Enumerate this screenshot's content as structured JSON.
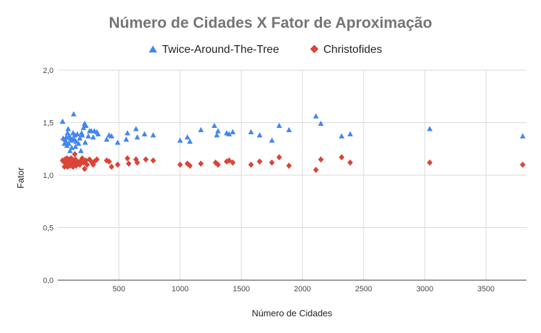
{
  "chart_data": {
    "type": "scatter",
    "title": "Número de Cidades X Fator de Aproximação",
    "xlabel": "Número de Cidades",
    "ylabel": "Fator",
    "xlim": [
      0,
      3830
    ],
    "ylim": [
      0,
      2.0
    ],
    "xticks": [
      500,
      1000,
      1500,
      2000,
      2500,
      3000,
      3500
    ],
    "xtick_labels": [
      "500",
      "1000",
      "1500",
      "2000",
      "2500",
      "3000",
      "3500"
    ],
    "yticks": [
      0,
      0.5,
      1.0,
      1.5,
      2.0
    ],
    "ytick_labels": [
      "0,0",
      "0,5",
      "1,0",
      "1,5",
      "2,0"
    ],
    "grid": true,
    "legend_position": "top-center",
    "series": [
      {
        "name": "Twice-Around-The-Tree",
        "marker": "triangle",
        "color": "#4285f4",
        "points": [
          [
            40,
            1.51
          ],
          [
            45,
            1.35
          ],
          [
            55,
            1.3
          ],
          [
            60,
            1.34
          ],
          [
            65,
            1.32
          ],
          [
            70,
            1.36
          ],
          [
            75,
            1.28
          ],
          [
            80,
            1.4
          ],
          [
            85,
            1.44
          ],
          [
            90,
            1.3
          ],
          [
            95,
            1.37
          ],
          [
            100,
            1.23
          ],
          [
            105,
            1.35
          ],
          [
            110,
            1.33
          ],
          [
            115,
            1.26
          ],
          [
            120,
            1.34
          ],
          [
            125,
            1.4
          ],
          [
            130,
            1.58
          ],
          [
            135,
            1.34
          ],
          [
            140,
            1.38
          ],
          [
            145,
            1.27
          ],
          [
            150,
            1.32
          ],
          [
            160,
            1.39
          ],
          [
            170,
            1.3
          ],
          [
            180,
            1.35
          ],
          [
            190,
            1.23
          ],
          [
            195,
            1.4
          ],
          [
            200,
            1.38
          ],
          [
            210,
            1.45
          ],
          [
            220,
            1.49
          ],
          [
            225,
            1.31
          ],
          [
            230,
            1.47
          ],
          [
            250,
            1.37
          ],
          [
            260,
            1.42
          ],
          [
            275,
            1.42
          ],
          [
            290,
            1.36
          ],
          [
            300,
            1.42
          ],
          [
            320,
            1.41
          ],
          [
            330,
            1.39
          ],
          [
            400,
            1.34
          ],
          [
            420,
            1.38
          ],
          [
            440,
            1.37
          ],
          [
            490,
            1.31
          ],
          [
            560,
            1.34
          ],
          [
            570,
            1.4
          ],
          [
            640,
            1.44
          ],
          [
            650,
            1.36
          ],
          [
            710,
            1.39
          ],
          [
            780,
            1.38
          ],
          [
            1000,
            1.33
          ],
          [
            1060,
            1.36
          ],
          [
            1080,
            1.32
          ],
          [
            1170,
            1.43
          ],
          [
            1280,
            1.47
          ],
          [
            1300,
            1.38
          ],
          [
            1310,
            1.42
          ],
          [
            1380,
            1.4
          ],
          [
            1400,
            1.39
          ],
          [
            1430,
            1.41
          ],
          [
            1580,
            1.41
          ],
          [
            1650,
            1.38
          ],
          [
            1750,
            1.33
          ],
          [
            1810,
            1.47
          ],
          [
            1890,
            1.43
          ],
          [
            2110,
            1.56
          ],
          [
            2150,
            1.49
          ],
          [
            2320,
            1.37
          ],
          [
            2390,
            1.39
          ],
          [
            3040,
            1.44
          ],
          [
            3800,
            1.37
          ]
        ]
      },
      {
        "name": "Christofides",
        "marker": "diamond",
        "color": "#db4437",
        "points": [
          [
            40,
            1.14
          ],
          [
            50,
            1.13
          ],
          [
            55,
            1.08
          ],
          [
            60,
            1.15
          ],
          [
            65,
            1.12
          ],
          [
            70,
            1.1
          ],
          [
            75,
            1.16
          ],
          [
            80,
            1.08
          ],
          [
            85,
            1.13
          ],
          [
            90,
            1.11
          ],
          [
            95,
            1.15
          ],
          [
            100,
            1.09
          ],
          [
            105,
            1.12
          ],
          [
            110,
            1.16
          ],
          [
            115,
            1.1
          ],
          [
            120,
            1.13
          ],
          [
            125,
            1.08
          ],
          [
            130,
            1.14
          ],
          [
            135,
            1.11
          ],
          [
            140,
            1.2
          ],
          [
            145,
            1.15
          ],
          [
            150,
            1.09
          ],
          [
            160,
            1.13
          ],
          [
            170,
            1.12
          ],
          [
            180,
            1.1
          ],
          [
            190,
            1.14
          ],
          [
            200,
            1.16
          ],
          [
            210,
            1.12
          ],
          [
            220,
            1.06
          ],
          [
            230,
            1.14
          ],
          [
            240,
            1.1
          ],
          [
            260,
            1.15
          ],
          [
            280,
            1.12
          ],
          [
            290,
            1.1
          ],
          [
            300,
            1.13
          ],
          [
            320,
            1.15
          ],
          [
            400,
            1.14
          ],
          [
            420,
            1.13
          ],
          [
            440,
            1.08
          ],
          [
            490,
            1.1
          ],
          [
            570,
            1.16
          ],
          [
            580,
            1.11
          ],
          [
            640,
            1.15
          ],
          [
            650,
            1.12
          ],
          [
            720,
            1.15
          ],
          [
            780,
            1.14
          ],
          [
            1000,
            1.1
          ],
          [
            1060,
            1.11
          ],
          [
            1080,
            1.09
          ],
          [
            1170,
            1.11
          ],
          [
            1290,
            1.12
          ],
          [
            1310,
            1.1
          ],
          [
            1380,
            1.13
          ],
          [
            1400,
            1.14
          ],
          [
            1430,
            1.12
          ],
          [
            1580,
            1.1
          ],
          [
            1650,
            1.13
          ],
          [
            1750,
            1.12
          ],
          [
            1810,
            1.17
          ],
          [
            1890,
            1.09
          ],
          [
            2110,
            1.05
          ],
          [
            2150,
            1.15
          ],
          [
            2320,
            1.17
          ],
          [
            2390,
            1.12
          ],
          [
            3040,
            1.12
          ],
          [
            3800,
            1.1
          ]
        ]
      }
    ]
  }
}
